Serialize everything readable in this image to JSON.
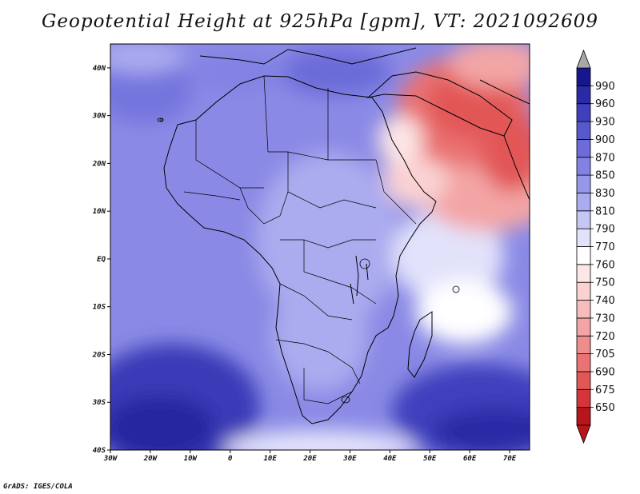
{
  "title": "Geopotential Height at 925hPa [gpm], VT: 2021092609",
  "credit": "GrADS: IGES/COLA",
  "map": {
    "type": "filled-contour map",
    "region": "Africa",
    "lon_range": [
      -30,
      75
    ],
    "lat_range": [
      -40,
      45
    ]
  },
  "axes": {
    "x_ticks": [
      "30W",
      "20W",
      "10W",
      "0",
      "10E",
      "20E",
      "30E",
      "40E",
      "50E",
      "60E",
      "70E"
    ],
    "y_ticks": [
      "40S",
      "30S",
      "20S",
      "10S",
      "EQ",
      "10N",
      "20N",
      "30N",
      "40N"
    ]
  },
  "colorbar": {
    "levels": [
      "650",
      "675",
      "690",
      "705",
      "720",
      "730",
      "740",
      "750",
      "760",
      "770",
      "790",
      "810",
      "830",
      "850",
      "870",
      "900",
      "930",
      "960",
      "990"
    ],
    "colors": [
      "#b8141c",
      "#d4343a",
      "#e25656",
      "#ea7272",
      "#ef8c8c",
      "#f3a5a5",
      "#f7bcbc",
      "#fad2d2",
      "#fde6e6",
      "#ffffff",
      "#e2e2fb",
      "#c6c6f5",
      "#ababef",
      "#9696ea",
      "#8282e4",
      "#6c6cd9",
      "#5858cc",
      "#4040be",
      "#2a2aa6",
      "#161690"
    ],
    "end_colors": {
      "low": "#b8141c",
      "high": "#a8a8a8"
    }
  }
}
